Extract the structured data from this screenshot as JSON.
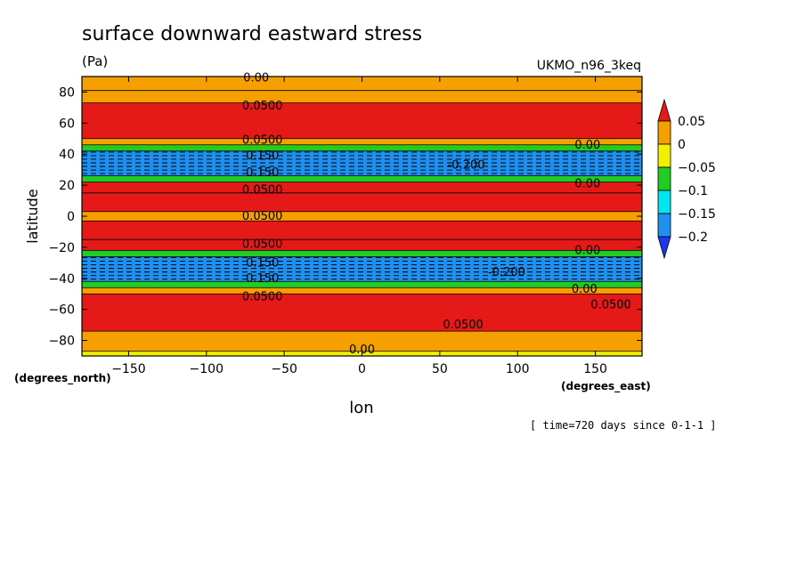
{
  "chart_data": {
    "type": "heatmap",
    "title": "surface downward eastward stress",
    "units": "(Pa)",
    "model": "UKMO_n96_3keq",
    "xlabel": "lon",
    "ylabel": "latitude",
    "x_units": "(degrees_east)",
    "y_units": "(degrees_north)",
    "time_label": "[ time=720 days since 0-1-1 ]",
    "xlim": [
      -180,
      180
    ],
    "ylim": [
      -90,
      90
    ],
    "x_ticks": [
      -150,
      -100,
      -50,
      0,
      50,
      100,
      150
    ],
    "y_ticks": [
      -80,
      -60,
      -40,
      -20,
      0,
      20,
      40,
      60,
      80
    ],
    "colorbar": {
      "levels": [
        0.05,
        0,
        -0.05,
        -0.1,
        -0.15,
        -0.2
      ],
      "labels": [
        "0.05",
        "0",
        "−0.05",
        "−0.1",
        "−0.15",
        "−0.2"
      ],
      "colors": [
        "#e61919",
        "#f5a000",
        "#f0f000",
        "#22cc22",
        "#00e6f0",
        "#1f8ff0",
        "#1a3aef"
      ]
    },
    "bands": [
      {
        "lat": [
          81,
          90
        ],
        "value": 0.02
      },
      {
        "lat": [
          73,
          81
        ],
        "value": 0.04
      },
      {
        "lat": [
          50,
          73
        ],
        "value": 0.07
      },
      {
        "lat": [
          46,
          50
        ],
        "value": 0.02
      },
      {
        "lat": [
          42,
          46
        ],
        "value": -0.06
      },
      {
        "lat": [
          26,
          42
        ],
        "value": -0.17
      },
      {
        "lat": [
          22,
          26
        ],
        "value": -0.08
      },
      {
        "lat": [
          15,
          22
        ],
        "value": 0.06
      },
      {
        "lat": [
          3,
          15
        ],
        "value": 0.08
      },
      {
        "lat": [
          -3,
          3
        ],
        "value": 0.02
      },
      {
        "lat": [
          -15,
          -3
        ],
        "value": 0.08
      },
      {
        "lat": [
          -22,
          -15
        ],
        "value": 0.06
      },
      {
        "lat": [
          -26,
          -22
        ],
        "value": -0.08
      },
      {
        "lat": [
          -42,
          -26
        ],
        "value": -0.17
      },
      {
        "lat": [
          -46,
          -42
        ],
        "value": -0.06
      },
      {
        "lat": [
          -50,
          -46
        ],
        "value": 0.02
      },
      {
        "lat": [
          -74,
          -50
        ],
        "value": 0.07
      },
      {
        "lat": [
          -87,
          -74
        ],
        "value": 0.03
      },
      {
        "lat": [
          -90,
          -87
        ],
        "value": -0.01
      }
    ],
    "minima": [
      {
        "lon": 50,
        "lat": 35,
        "value": -0.2
      },
      {
        "lon": 60,
        "lat": -35,
        "value": -0.2
      }
    ],
    "contour_labels": [
      {
        "text": "0.00",
        "lon": -68,
        "lat": 89
      },
      {
        "text": "0.0500",
        "lon": -64,
        "lat": 71
      },
      {
        "text": "0.0500",
        "lon": -64,
        "lat": 49
      },
      {
        "text": "0.150",
        "lon": -64,
        "lat": 39
      },
      {
        "text": "0.150",
        "lon": -64,
        "lat": 28
      },
      {
        "text": "0.0500",
        "lon": -64,
        "lat": 17
      },
      {
        "text": "0.0500",
        "lon": -64,
        "lat": 0
      },
      {
        "text": "0.0500",
        "lon": -64,
        "lat": -18
      },
      {
        "text": "0.150",
        "lon": -64,
        "lat": -30
      },
      {
        "text": "0.150",
        "lon": -64,
        "lat": -40
      },
      {
        "text": "0.0500",
        "lon": -64,
        "lat": -52
      },
      {
        "text": "-0.200",
        "lon": 67,
        "lat": 33
      },
      {
        "text": "-0.200",
        "lon": 93,
        "lat": -36
      },
      {
        "text": "0.00",
        "lon": 145,
        "lat": 46
      },
      {
        "text": "0.00",
        "lon": 145,
        "lat": 21
      },
      {
        "text": "0.00",
        "lon": 145,
        "lat": -22
      },
      {
        "text": "0.00",
        "lon": 143,
        "lat": -47
      },
      {
        "text": "0.0500",
        "lon": 160,
        "lat": -57
      },
      {
        "text": "0.0500",
        "lon": 65,
        "lat": -70
      },
      {
        "text": "0.00",
        "lon": 0,
        "lat": -86
      }
    ]
  }
}
